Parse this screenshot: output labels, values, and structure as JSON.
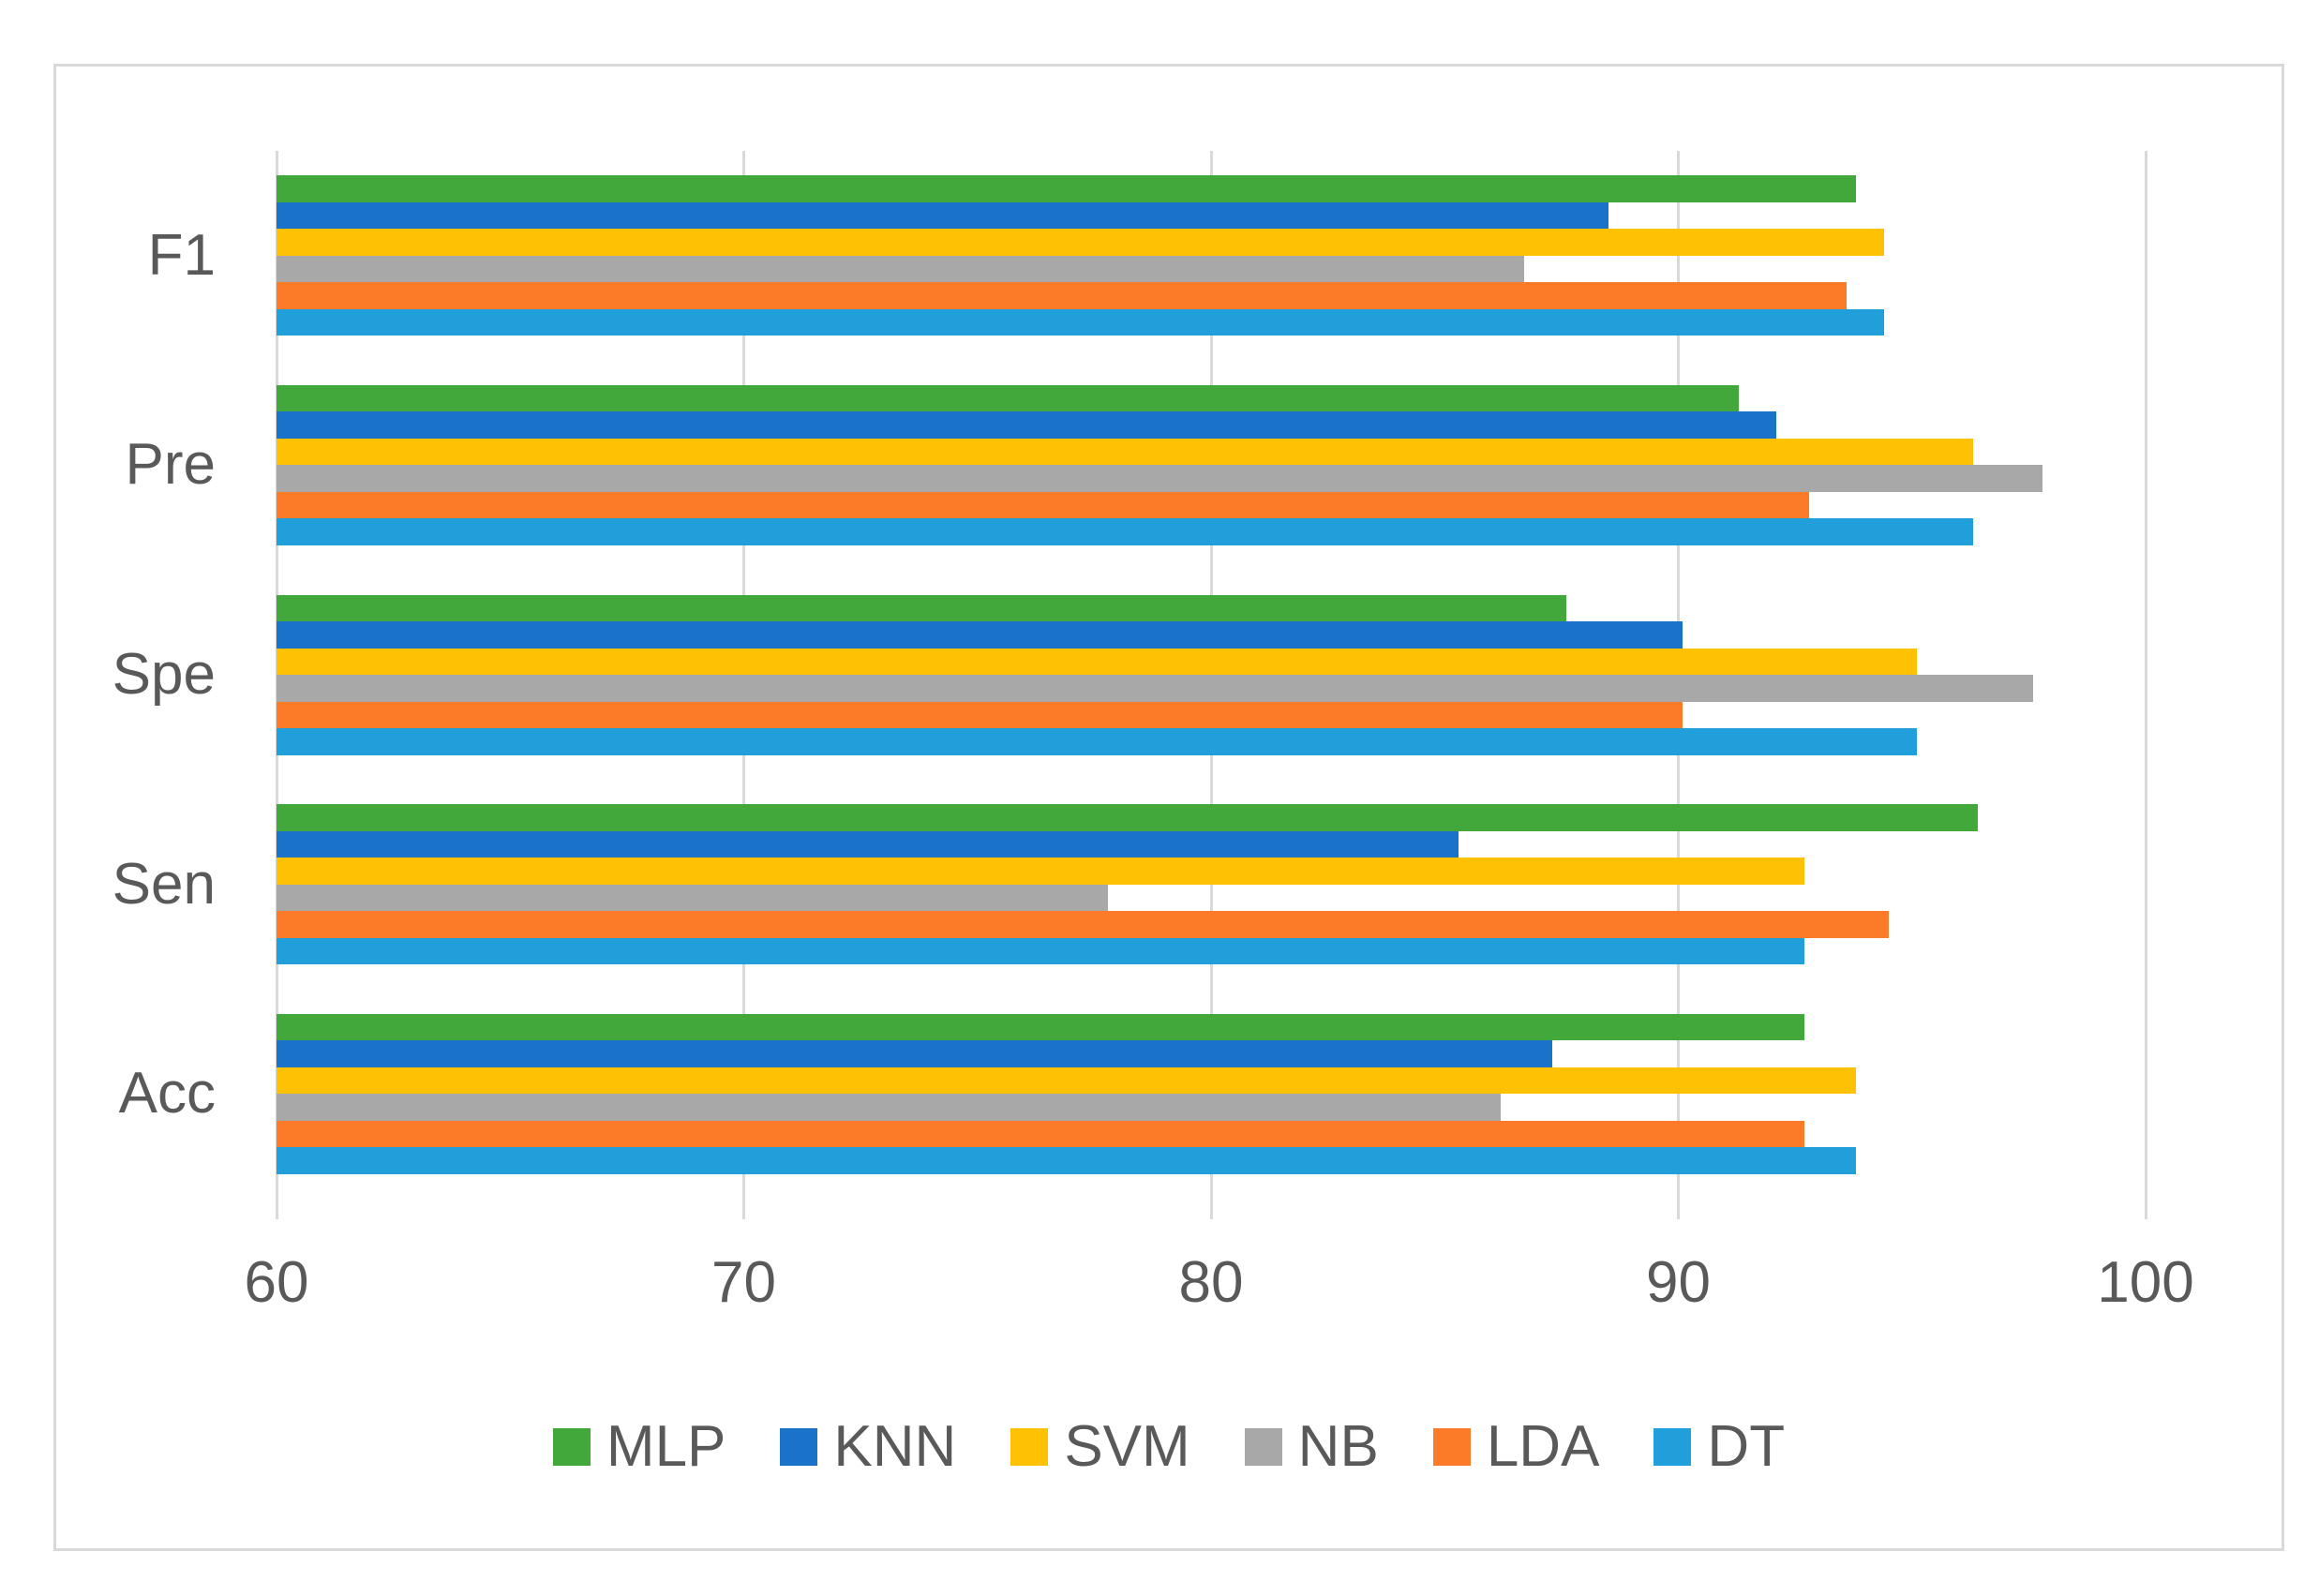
{
  "chart_data": {
    "type": "bar",
    "orientation": "horizontal",
    "title": "",
    "xlabel": "",
    "ylabel": "",
    "categories": [
      "F1",
      "Pre",
      "Spe",
      "Sen",
      "Acc"
    ],
    "series": [
      {
        "name": "MLP",
        "color": "#43A83C",
        "values": [
          93.8,
          91.3,
          87.6,
          96.4,
          92.7
        ]
      },
      {
        "name": "KNN",
        "color": "#1A73C8",
        "values": [
          88.5,
          92.1,
          90.1,
          85.3,
          87.3
        ]
      },
      {
        "name": "SVM",
        "color": "#FEC103",
        "values": [
          94.4,
          96.3,
          95.1,
          92.7,
          93.8
        ]
      },
      {
        "name": "NB",
        "color": "#A8A8A8",
        "values": [
          86.7,
          97.8,
          97.6,
          77.8,
          86.2
        ]
      },
      {
        "name": "LDA",
        "color": "#FB7B28",
        "values": [
          93.6,
          92.8,
          90.1,
          94.5,
          92.7
        ]
      },
      {
        "name": "DT",
        "color": "#219FDA",
        "values": [
          94.4,
          96.3,
          95.1,
          92.7,
          93.8
        ]
      }
    ],
    "x_ticks": [
      60,
      70,
      80,
      90,
      100
    ],
    "xlim": [
      60,
      103
    ],
    "grid": "vertical-only",
    "legend_position": "bottom",
    "legend_order": [
      "MLP",
      "KNN",
      "SVM",
      "NB",
      "LDA",
      "DT"
    ],
    "colors": {
      "axis_text": "#595959",
      "gridline": "#D9D9D9",
      "frame_border": "#D9D9D9",
      "background": "#FFFFFF"
    }
  }
}
